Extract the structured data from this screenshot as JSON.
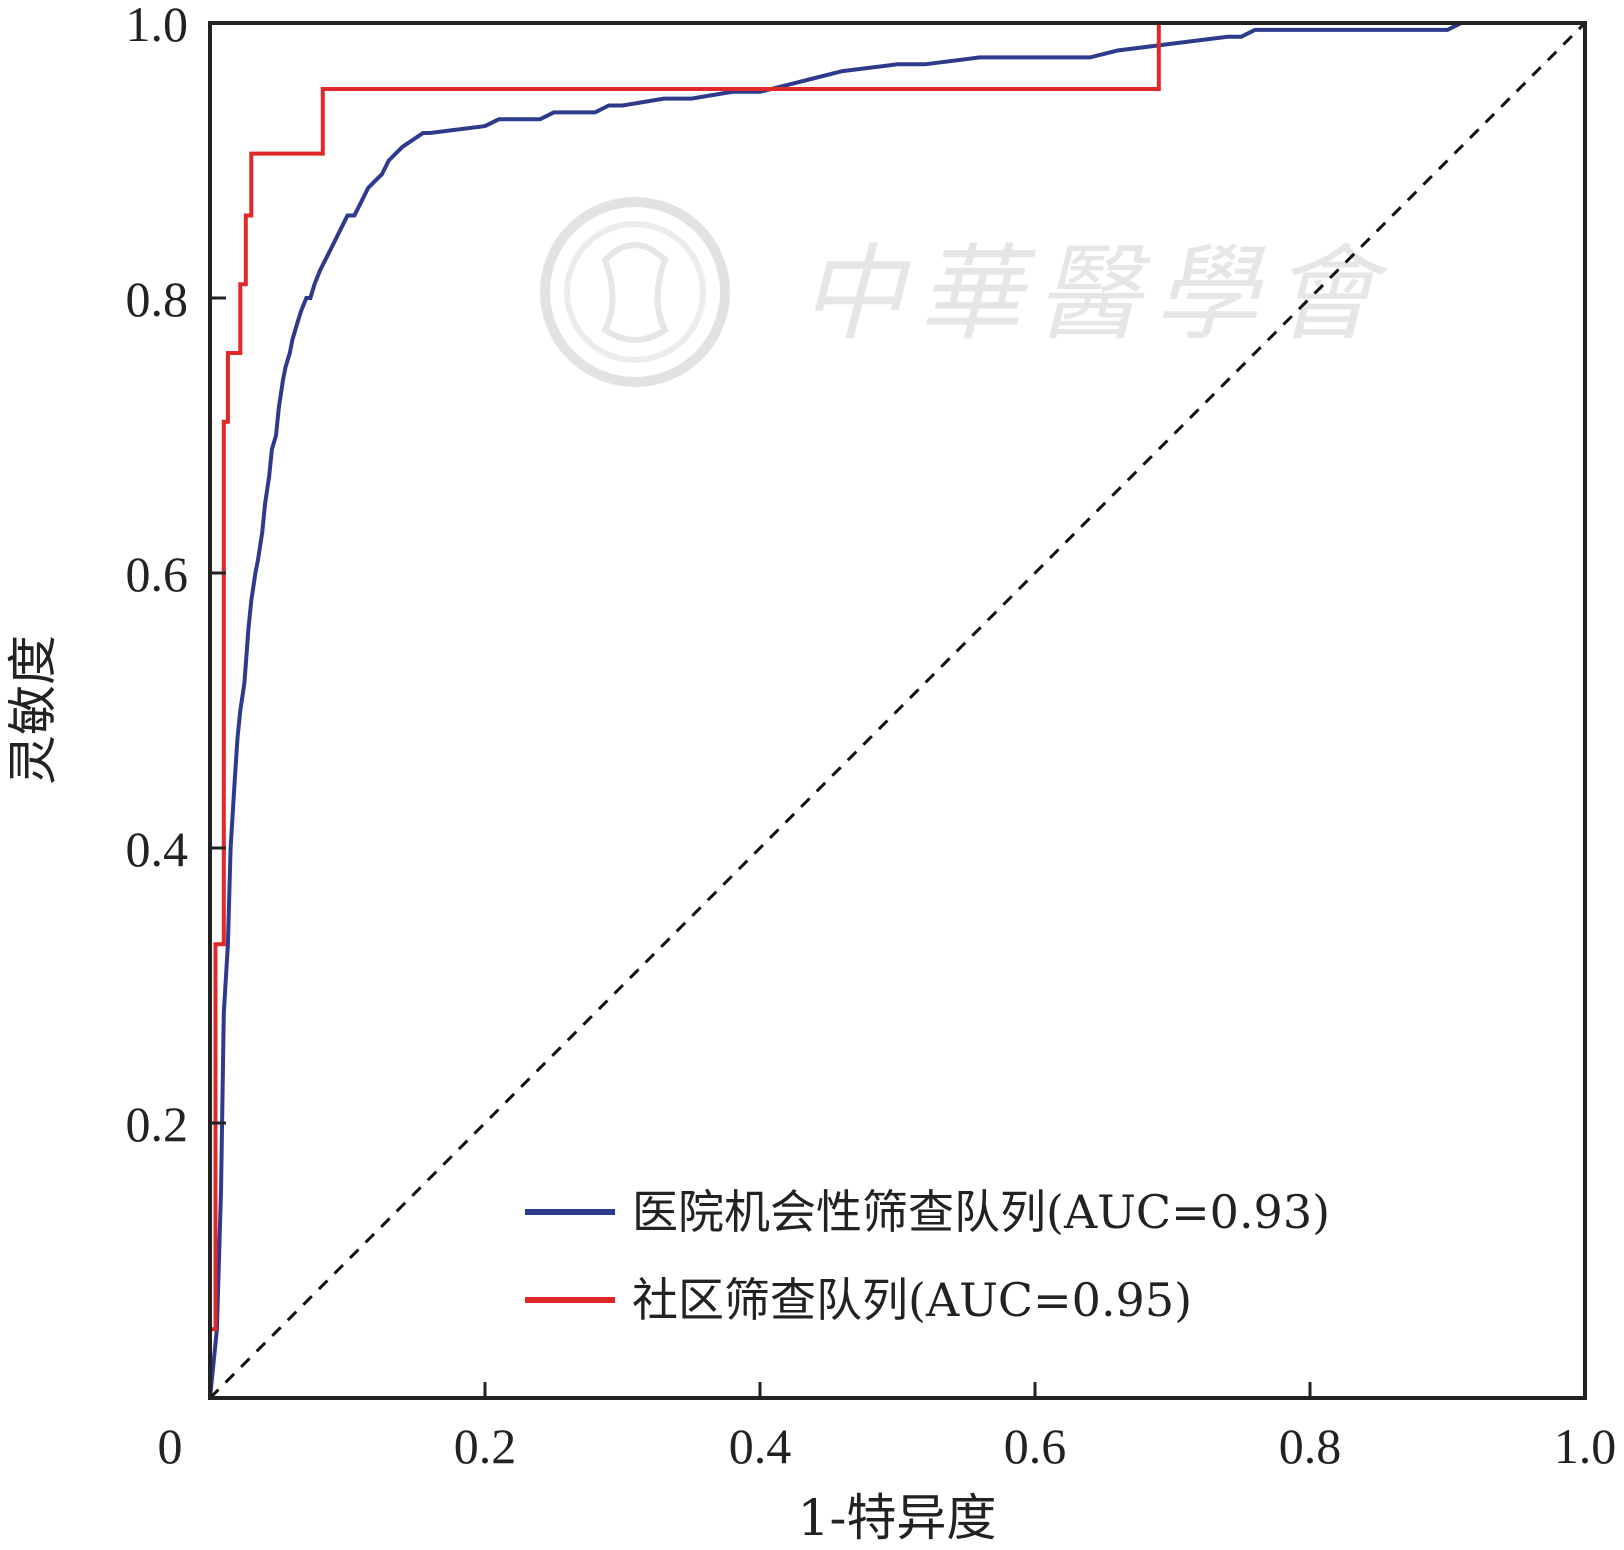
{
  "chart_data": {
    "type": "line",
    "xlabel": "1-特异度",
    "ylabel": "灵敏度",
    "xlim": [
      0,
      1
    ],
    "ylim": [
      0,
      1
    ],
    "xticks": [
      "0",
      "0.2",
      "0.4",
      "0.6",
      "0.8",
      "1.0"
    ],
    "yticks": [
      "0.2",
      "0.4",
      "0.6",
      "0.8",
      "1.0"
    ],
    "grid": false,
    "legend_position": "bottom-right",
    "series": [
      {
        "name": "医院机会性筛查队列(AUC=0.93)",
        "color": "#2e3a8c",
        "x": [
          0.0,
          0.005,
          0.008,
          0.01,
          0.013,
          0.015,
          0.018,
          0.02,
          0.022,
          0.025,
          0.028,
          0.03,
          0.033,
          0.035,
          0.038,
          0.04,
          0.043,
          0.045,
          0.048,
          0.05,
          0.053,
          0.055,
          0.058,
          0.06,
          0.063,
          0.066,
          0.07,
          0.073,
          0.076,
          0.08,
          0.085,
          0.09,
          0.095,
          0.1,
          0.105,
          0.11,
          0.115,
          0.12,
          0.125,
          0.13,
          0.135,
          0.14,
          0.155,
          0.16,
          0.2,
          0.21,
          0.24,
          0.25,
          0.28,
          0.29,
          0.3,
          0.33,
          0.35,
          0.38,
          0.4,
          0.42,
          0.44,
          0.46,
          0.5,
          0.52,
          0.56,
          0.6,
          0.64,
          0.66,
          0.7,
          0.74,
          0.75,
          0.76,
          0.79,
          0.9,
          0.91,
          1.0
        ],
        "y": [
          0.0,
          0.05,
          0.15,
          0.28,
          0.33,
          0.4,
          0.45,
          0.48,
          0.5,
          0.52,
          0.56,
          0.58,
          0.6,
          0.61,
          0.63,
          0.65,
          0.67,
          0.69,
          0.7,
          0.72,
          0.74,
          0.75,
          0.76,
          0.77,
          0.78,
          0.79,
          0.8,
          0.8,
          0.81,
          0.82,
          0.83,
          0.84,
          0.85,
          0.86,
          0.86,
          0.87,
          0.88,
          0.885,
          0.89,
          0.9,
          0.905,
          0.91,
          0.92,
          0.92,
          0.925,
          0.93,
          0.93,
          0.935,
          0.935,
          0.94,
          0.94,
          0.945,
          0.945,
          0.95,
          0.95,
          0.955,
          0.96,
          0.965,
          0.97,
          0.97,
          0.975,
          0.975,
          0.975,
          0.98,
          0.985,
          0.99,
          0.99,
          0.995,
          0.995,
          0.995,
          1.0,
          1.0
        ]
      },
      {
        "name": "社区筛查队列(AUC=0.95)",
        "color": "#e0282a",
        "x": [
          0.0,
          0.0,
          0.004,
          0.004,
          0.01,
          0.01,
          0.013,
          0.013,
          0.022,
          0.022,
          0.026,
          0.026,
          0.03,
          0.03,
          0.035,
          0.035,
          0.082,
          0.082,
          0.69,
          0.69,
          1.0
        ],
        "y": [
          0.0,
          0.05,
          0.05,
          0.33,
          0.33,
          0.71,
          0.71,
          0.76,
          0.76,
          0.81,
          0.81,
          0.86,
          0.86,
          0.905,
          0.905,
          0.905,
          0.905,
          0.952,
          0.952,
          1.0,
          1.0
        ]
      },
      {
        "name": "",
        "color": "#111111",
        "dashed": true,
        "x": [
          0,
          1
        ],
        "y": [
          0,
          1
        ]
      }
    ]
  },
  "watermark": {
    "text": "中華醫學會",
    "seal_icon": "chinese-medical-association-seal-icon"
  }
}
